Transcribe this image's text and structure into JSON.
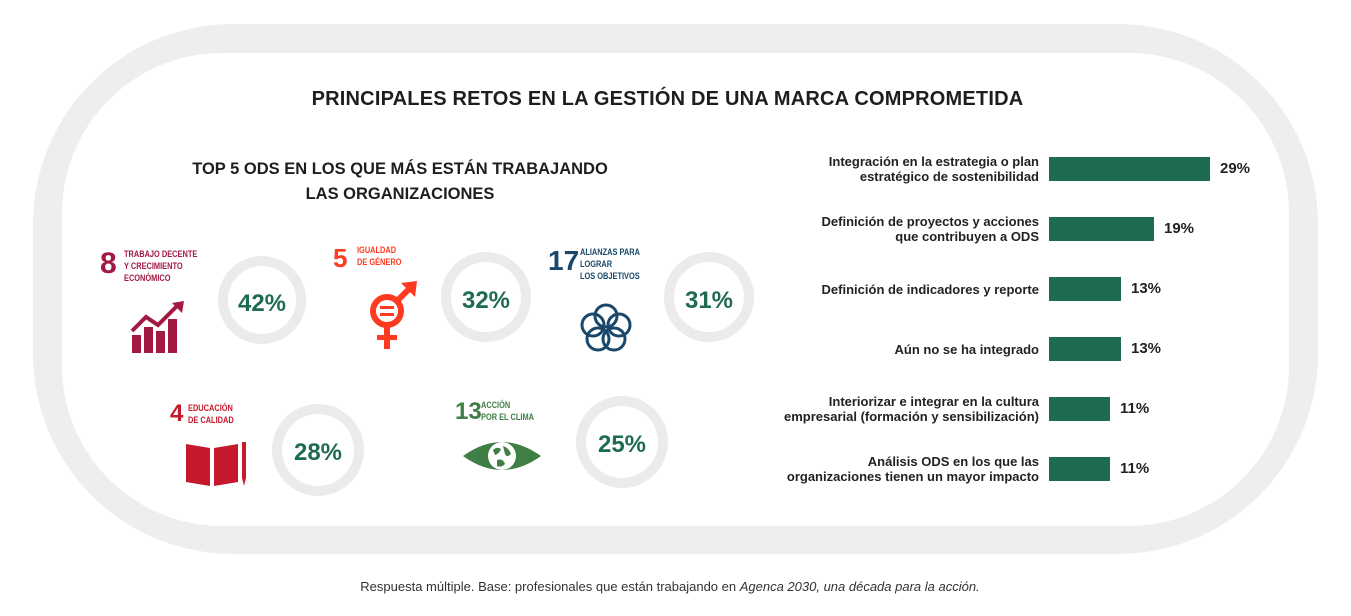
{
  "title": "PRINCIPALES RETOS EN LA GESTIÓN DE UNA MARCA COMPROMETIDA",
  "ods_panel": {
    "title_line1": "TOP 5 ODS EN LOS QUE MÁS ESTÁN TRABAJANDO",
    "title_line2": "LAS ORGANIZACIONES",
    "items": [
      {
        "number": "8",
        "label_lines": [
          "TRABAJO DECENTE",
          "Y CRECIMIENTO",
          "ECONÓMICO"
        ],
        "value": "42%",
        "color": "#a21942",
        "icon": "growth-chart-icon"
      },
      {
        "number": "5",
        "label_lines": [
          "IGUALDAD",
          "DE GÉNERO"
        ],
        "value": "32%",
        "color": "#ff3a21",
        "icon": "gender-equality-icon"
      },
      {
        "number": "17",
        "label_lines": [
          "ALIANZAS PARA",
          "LOGRAR",
          "LOS OBJETIVOS"
        ],
        "value": "31%",
        "color": "#19486a",
        "icon": "partnership-rings-icon"
      },
      {
        "number": "4",
        "label_lines": [
          "EDUCACIÓN",
          "DE CALIDAD"
        ],
        "value": "28%",
        "color": "#c5192d",
        "icon": "book-pencil-icon"
      },
      {
        "number": "13",
        "label_lines": [
          "ACCIÓN",
          "POR EL CLIMA"
        ],
        "value": "25%",
        "color": "#3f7e44",
        "icon": "earth-eye-icon"
      }
    ]
  },
  "chart_data": {
    "type": "bar",
    "orientation": "horizontal",
    "categories": [
      [
        "Integración en la estrategia o plan",
        "estratégico de sostenibilidad"
      ],
      [
        "Definición de proyectos y acciones",
        "que contribuyen a ODS"
      ],
      [
        "Definición de indicadores y reporte"
      ],
      [
        "Aún no se ha integrado"
      ],
      [
        "Interiorizar e integrar en la cultura",
        "empresarial (formación y sensibilización)"
      ],
      [
        "Análisis ODS en los que las",
        "organizaciones tienen un mayor impacto"
      ]
    ],
    "values": [
      29,
      19,
      13,
      13,
      11,
      11
    ],
    "value_labels": [
      "29%",
      "19%",
      "13%",
      "13%",
      "11%",
      "11%"
    ],
    "bar_color": "#1f6b50",
    "xlim": [
      0,
      29
    ]
  },
  "footnote": {
    "text": "Respuesta múltiple. Base: profesionales que están trabajando en ",
    "italic": "Agenca 2030, una década para la acción."
  }
}
